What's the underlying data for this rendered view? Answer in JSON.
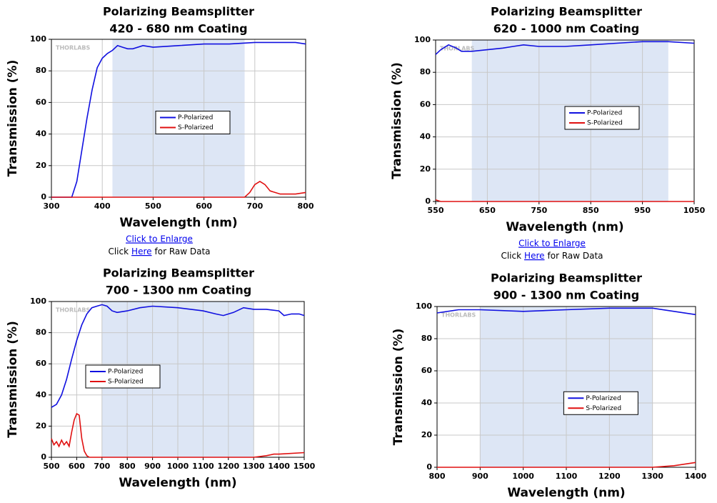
{
  "chart_data": [
    {
      "type": "line",
      "title": "Polarizing Beamsplitter",
      "subtitle": "420 - 680 nm Coating",
      "xlabel": "Wavelength (nm)",
      "ylabel": "Transmission (%)",
      "watermark": "THORLABS",
      "xlim": [
        300,
        800
      ],
      "xticks": [
        300,
        400,
        500,
        600,
        700,
        800
      ],
      "ylim": [
        0,
        100
      ],
      "yticks": [
        0,
        20,
        40,
        60,
        80,
        100
      ],
      "grid": true,
      "legend": "center",
      "shaded_range": [
        420,
        680
      ],
      "shade_color": "#dde6f5",
      "series": [
        {
          "name": "P-Polarized",
          "color": "#1010e0",
          "x": [
            300,
            340,
            350,
            360,
            370,
            380,
            390,
            400,
            410,
            420,
            430,
            440,
            450,
            460,
            480,
            500,
            550,
            600,
            650,
            700,
            750,
            780,
            800
          ],
          "values": [
            0,
            0,
            10,
            30,
            50,
            68,
            82,
            88,
            91,
            93,
            96,
            95,
            94,
            94,
            96,
            95,
            96,
            97,
            97,
            98,
            98,
            98,
            97
          ]
        },
        {
          "name": "S-Polarized",
          "color": "#e01010",
          "x": [
            300,
            340,
            400,
            500,
            600,
            680,
            690,
            700,
            710,
            720,
            730,
            750,
            780,
            800
          ],
          "values": [
            0,
            0,
            0,
            0,
            0,
            0,
            3,
            8,
            10,
            8,
            4,
            2,
            2,
            3
          ]
        }
      ]
    },
    {
      "type": "line",
      "title": "Polarizing Beamsplitter",
      "subtitle": "620 - 1000 nm Coating",
      "xlabel": "Wavelength (nm)",
      "ylabel": "Transmission (%)",
      "watermark": "THORLABS",
      "xlim": [
        550,
        1050
      ],
      "xticks": [
        550,
        650,
        750,
        850,
        950,
        1050
      ],
      "ylim": [
        0,
        100
      ],
      "yticks": [
        0,
        20,
        40,
        60,
        80,
        100
      ],
      "grid": true,
      "legend": "right",
      "shaded_range": [
        620,
        1000
      ],
      "shade_color": "#dde6f5",
      "series": [
        {
          "name": "P-Polarized",
          "color": "#1010e0",
          "x": [
            550,
            560,
            575,
            590,
            600,
            620,
            650,
            680,
            700,
            720,
            750,
            800,
            850,
            900,
            950,
            1000,
            1050
          ],
          "values": [
            91,
            94,
            97,
            95,
            93,
            93,
            94,
            95,
            96,
            97,
            96,
            96,
            97,
            98,
            99,
            99,
            98
          ]
        },
        {
          "name": "S-Polarized",
          "color": "#e01010",
          "x": [
            550,
            560,
            1050
          ],
          "values": [
            1,
            0,
            0
          ]
        }
      ]
    },
    {
      "type": "line",
      "title": "Polarizing Beamsplitter",
      "subtitle": "700 - 1300 nm Coating",
      "xlabel": "Wavelength (nm)",
      "ylabel": "Transmission (%)",
      "watermark": "THORLABS",
      "xlim": [
        500,
        1500
      ],
      "xticks": [
        500,
        600,
        700,
        800,
        900,
        1000,
        1100,
        1200,
        1300,
        1400,
        1500
      ],
      "ylim": [
        0,
        100
      ],
      "yticks": [
        0,
        20,
        40,
        60,
        80,
        100
      ],
      "grid": true,
      "legend": "left",
      "shaded_range": [
        700,
        1300
      ],
      "shade_color": "#dde6f5",
      "series": [
        {
          "name": "P-Polarized",
          "color": "#1010e0",
          "x": [
            500,
            520,
            540,
            560,
            580,
            600,
            620,
            640,
            660,
            680,
            700,
            720,
            740,
            760,
            800,
            850,
            900,
            1000,
            1100,
            1150,
            1180,
            1220,
            1260,
            1300,
            1350,
            1400,
            1420,
            1450,
            1480,
            1500
          ],
          "values": [
            32,
            34,
            40,
            50,
            63,
            75,
            85,
            92,
            96,
            97,
            98,
            97,
            94,
            93,
            94,
            96,
            97,
            96,
            94,
            92,
            91,
            93,
            96,
            95,
            95,
            94,
            91,
            92,
            92,
            91
          ]
        },
        {
          "name": "S-Polarized",
          "color": "#e01010",
          "x": [
            500,
            510,
            520,
            530,
            540,
            550,
            560,
            570,
            580,
            590,
            600,
            610,
            620,
            630,
            640,
            650,
            700,
            1300,
            1350,
            1380,
            1400,
            1500
          ],
          "values": [
            12,
            8,
            10,
            7,
            11,
            8,
            10,
            7,
            16,
            24,
            28,
            27,
            12,
            4,
            1,
            0,
            0,
            0,
            1,
            2,
            2,
            3
          ]
        }
      ]
    },
    {
      "type": "line",
      "title": "Polarizing Beamsplitter",
      "subtitle": "900 - 1300 nm Coating",
      "xlabel": "Wavelength (nm)",
      "ylabel": "Transmission (%)",
      "watermark": "THORLABS",
      "xlim": [
        800,
        1400
      ],
      "xticks": [
        800,
        900,
        1000,
        1100,
        1200,
        1300,
        1400
      ],
      "ylim": [
        0,
        100
      ],
      "yticks": [
        0,
        20,
        40,
        60,
        80,
        100
      ],
      "grid": true,
      "legend": "lower right",
      "shaded_range": [
        900,
        1300
      ],
      "shade_color": "#dde6f5",
      "series": [
        {
          "name": "P-Polarized",
          "color": "#1010e0",
          "x": [
            800,
            850,
            900,
            1000,
            1100,
            1200,
            1300,
            1350,
            1400
          ],
          "values": [
            96,
            98,
            98,
            97,
            98,
            99,
            99,
            97,
            95
          ]
        },
        {
          "name": "S-Polarized",
          "color": "#e01010",
          "x": [
            800,
            1300,
            1350,
            1400
          ],
          "values": [
            0,
            0,
            1,
            3
          ]
        }
      ]
    }
  ],
  "links": [
    {
      "enlarge": "Click to Enlarge",
      "raw_prefix": "Click",
      "raw_link": "Here",
      "raw_suffix": "for Raw Data"
    },
    {
      "enlarge": "Click to Enlarge",
      "raw_prefix": "Click",
      "raw_link": "Here",
      "raw_suffix": "for Raw Data"
    }
  ]
}
